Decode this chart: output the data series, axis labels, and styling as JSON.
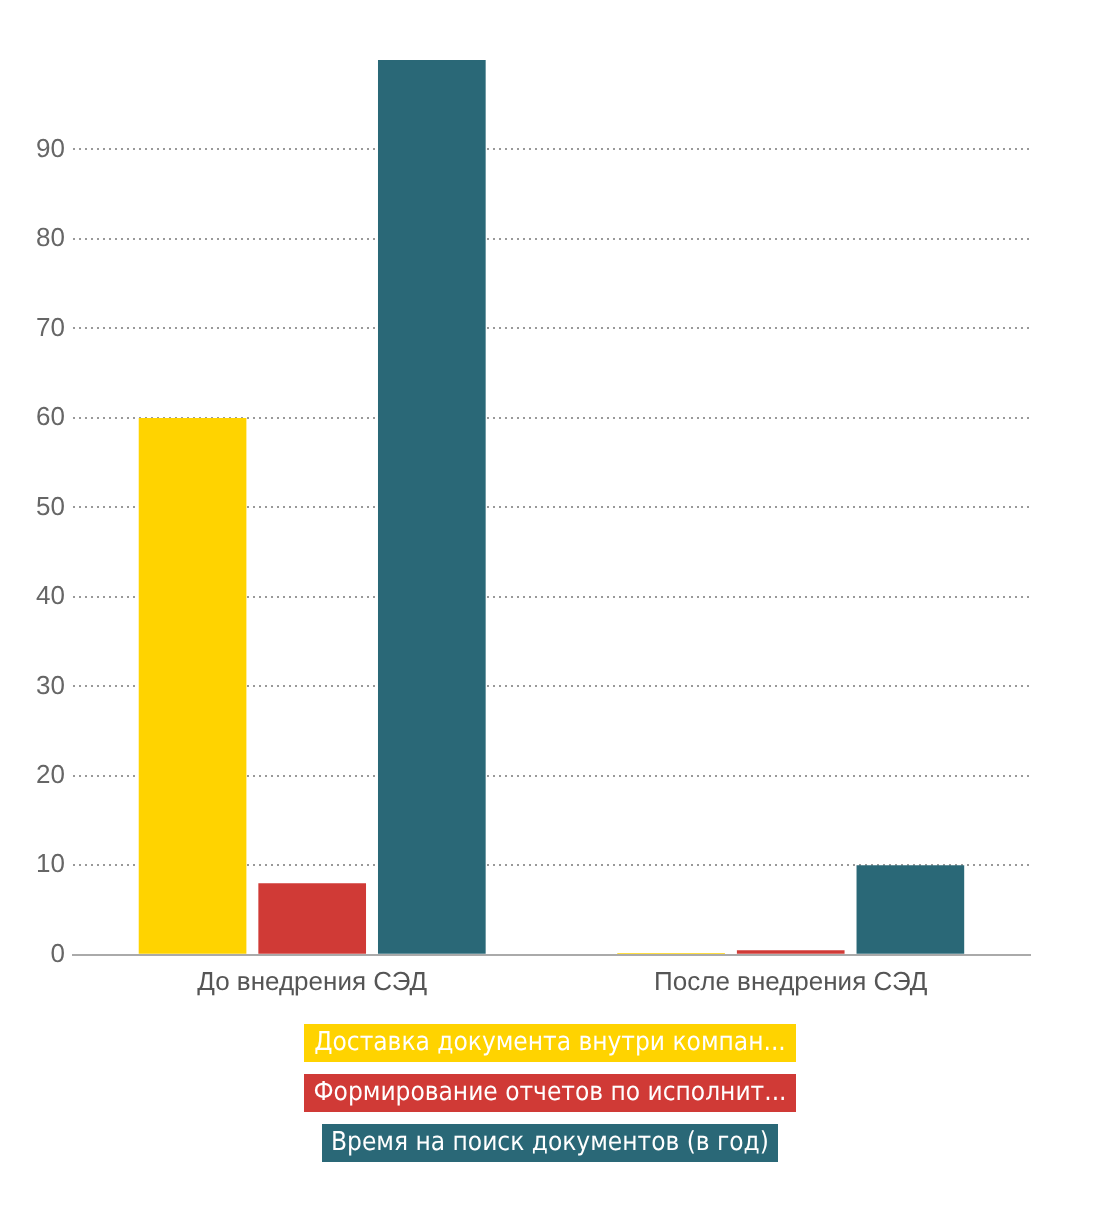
{
  "chart_data": {
    "type": "bar",
    "categories": [
      "До внедрения СЭД",
      "После внедрения СЭД"
    ],
    "series": [
      {
        "name": "Доставка документа внутри компан...",
        "color": "#ffd300",
        "values": [
          60,
          0.2
        ]
      },
      {
        "name": "Формирование отчетов по исполнит...",
        "color": "#d03a36",
        "values": [
          8,
          0.5
        ]
      },
      {
        "name": "Время на поиск документов (в год)",
        "color": "#2a6877",
        "values": [
          100,
          10
        ]
      }
    ],
    "ylim": [
      0,
      100
    ],
    "yticks": [
      0,
      10,
      20,
      30,
      40,
      50,
      60,
      70,
      80,
      90
    ],
    "grid": "y",
    "legend": "bottom"
  }
}
